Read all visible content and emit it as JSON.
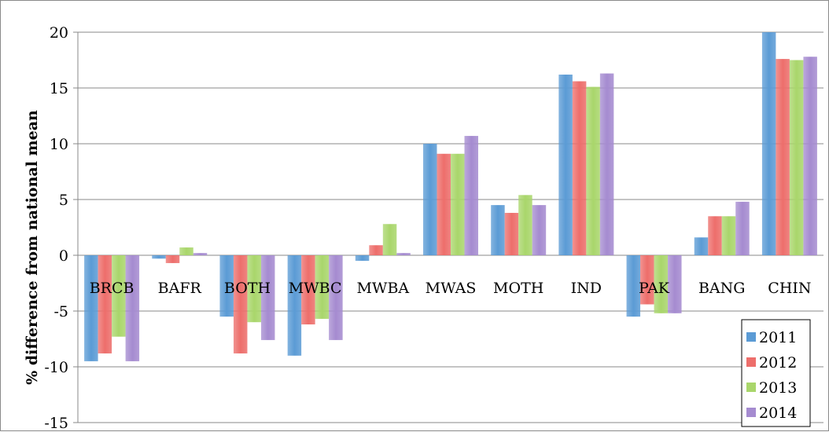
{
  "chart_data": {
    "type": "bar",
    "title": "",
    "xlabel": "",
    "ylabel": "% difference from national mean",
    "ylim": [
      -15,
      20
    ],
    "yticks": [
      20,
      15,
      10,
      5,
      0,
      -5,
      -10,
      -15
    ],
    "grid": true,
    "legend_position": "bottom-right",
    "categories": [
      "BRCB",
      "BAFR",
      "BOTH",
      "MWBC",
      "MWBA",
      "MWAS",
      "MOTH",
      "IND",
      "PAK",
      "BANG",
      "CHIN"
    ],
    "series": [
      {
        "name": "2011",
        "color": "#5b9bd5",
        "values": [
          -9.5,
          -0.3,
          -5.5,
          -9.0,
          -0.5,
          10.0,
          4.5,
          16.2,
          -5.5,
          1.6,
          20.0
        ]
      },
      {
        "name": "2012",
        "color": "#ed6e6b",
        "values": [
          -8.8,
          -0.7,
          -8.8,
          -6.2,
          0.9,
          9.1,
          3.8,
          15.6,
          -4.4,
          3.5,
          17.6
        ]
      },
      {
        "name": "2013",
        "color": "#a9d66b",
        "values": [
          -7.3,
          0.7,
          -6.0,
          -5.7,
          2.8,
          9.1,
          5.4,
          15.1,
          -5.2,
          3.5,
          17.5
        ]
      },
      {
        "name": "2014",
        "color": "#a58bd0",
        "values": [
          -9.5,
          0.2,
          -7.6,
          -7.6,
          0.2,
          10.7,
          4.5,
          16.3,
          -5.2,
          4.8,
          17.8
        ]
      }
    ]
  }
}
